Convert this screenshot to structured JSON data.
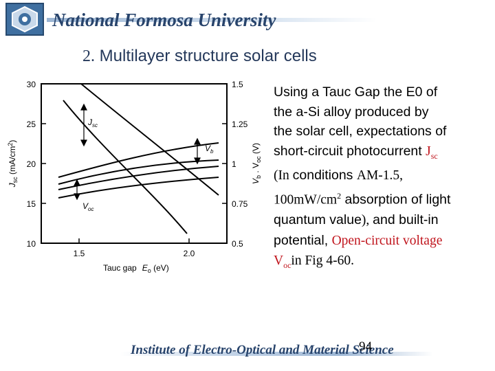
{
  "header": {
    "university": "National Formosa University"
  },
  "slide": {
    "number": "2.",
    "title": " Multilayer structure solar cells"
  },
  "figure": {
    "left_axis_label": "J",
    "left_axis_sub": "sc",
    "left_axis_unit": " (mA/cm",
    "left_axis_sup": "2",
    "left_axis_close": ")",
    "right_axis_label": "V",
    "right_axis_sub_b": "b",
    "right_axis_mid": " . V",
    "right_axis_sub_oc": "oc",
    "right_axis_unit": " (V)",
    "x_label_a": "Tauc  gap",
    "x_label_e": "E",
    "x_label_sub": "o",
    "x_label_unit": " (eV)",
    "left_ticks": [
      "30",
      "25",
      "20",
      "15",
      "10"
    ],
    "right_ticks": [
      "1.5",
      "1.25",
      "1",
      "0.75",
      "0.5"
    ],
    "x_ticks": [
      "1.5",
      "2.0"
    ],
    "ann_jsc": "J",
    "ann_jsc_sub": "sc",
    "ann_vb": "V",
    "ann_vb_sub": "b",
    "ann_voc": "V",
    "ann_voc_sub": "oc"
  },
  "body": {
    "l1": "Using a Tauc Gap the E0 of",
    "l2": "the a-Si alloy produced by",
    "l3": "the solar cell, expectations of",
    "l4a": "short-circuit photocurrent ",
    "l4b": "J",
    "l4c": "sc",
    "l5a": "(In ",
    "l5b": "conditions ",
    "l5c": "AM-1.5,",
    "l6a": "100mW/cm",
    "l6b": "2",
    "l6c": " absorption of light",
    "l7a": "quantum value",
    "l7b": "), ",
    "l7c": "and built-in",
    "l8a": "potential, ",
    "l8b": "Open-circuit voltage",
    "l9a": "V",
    "l9b": "oc",
    "l9c": "in Fig 4-60."
  },
  "footer": {
    "institute": "Institute of Electro-Optical and Material Science",
    "page": "94"
  },
  "colors": {
    "accent": "#28446c",
    "highlight": "#c0141c"
  }
}
